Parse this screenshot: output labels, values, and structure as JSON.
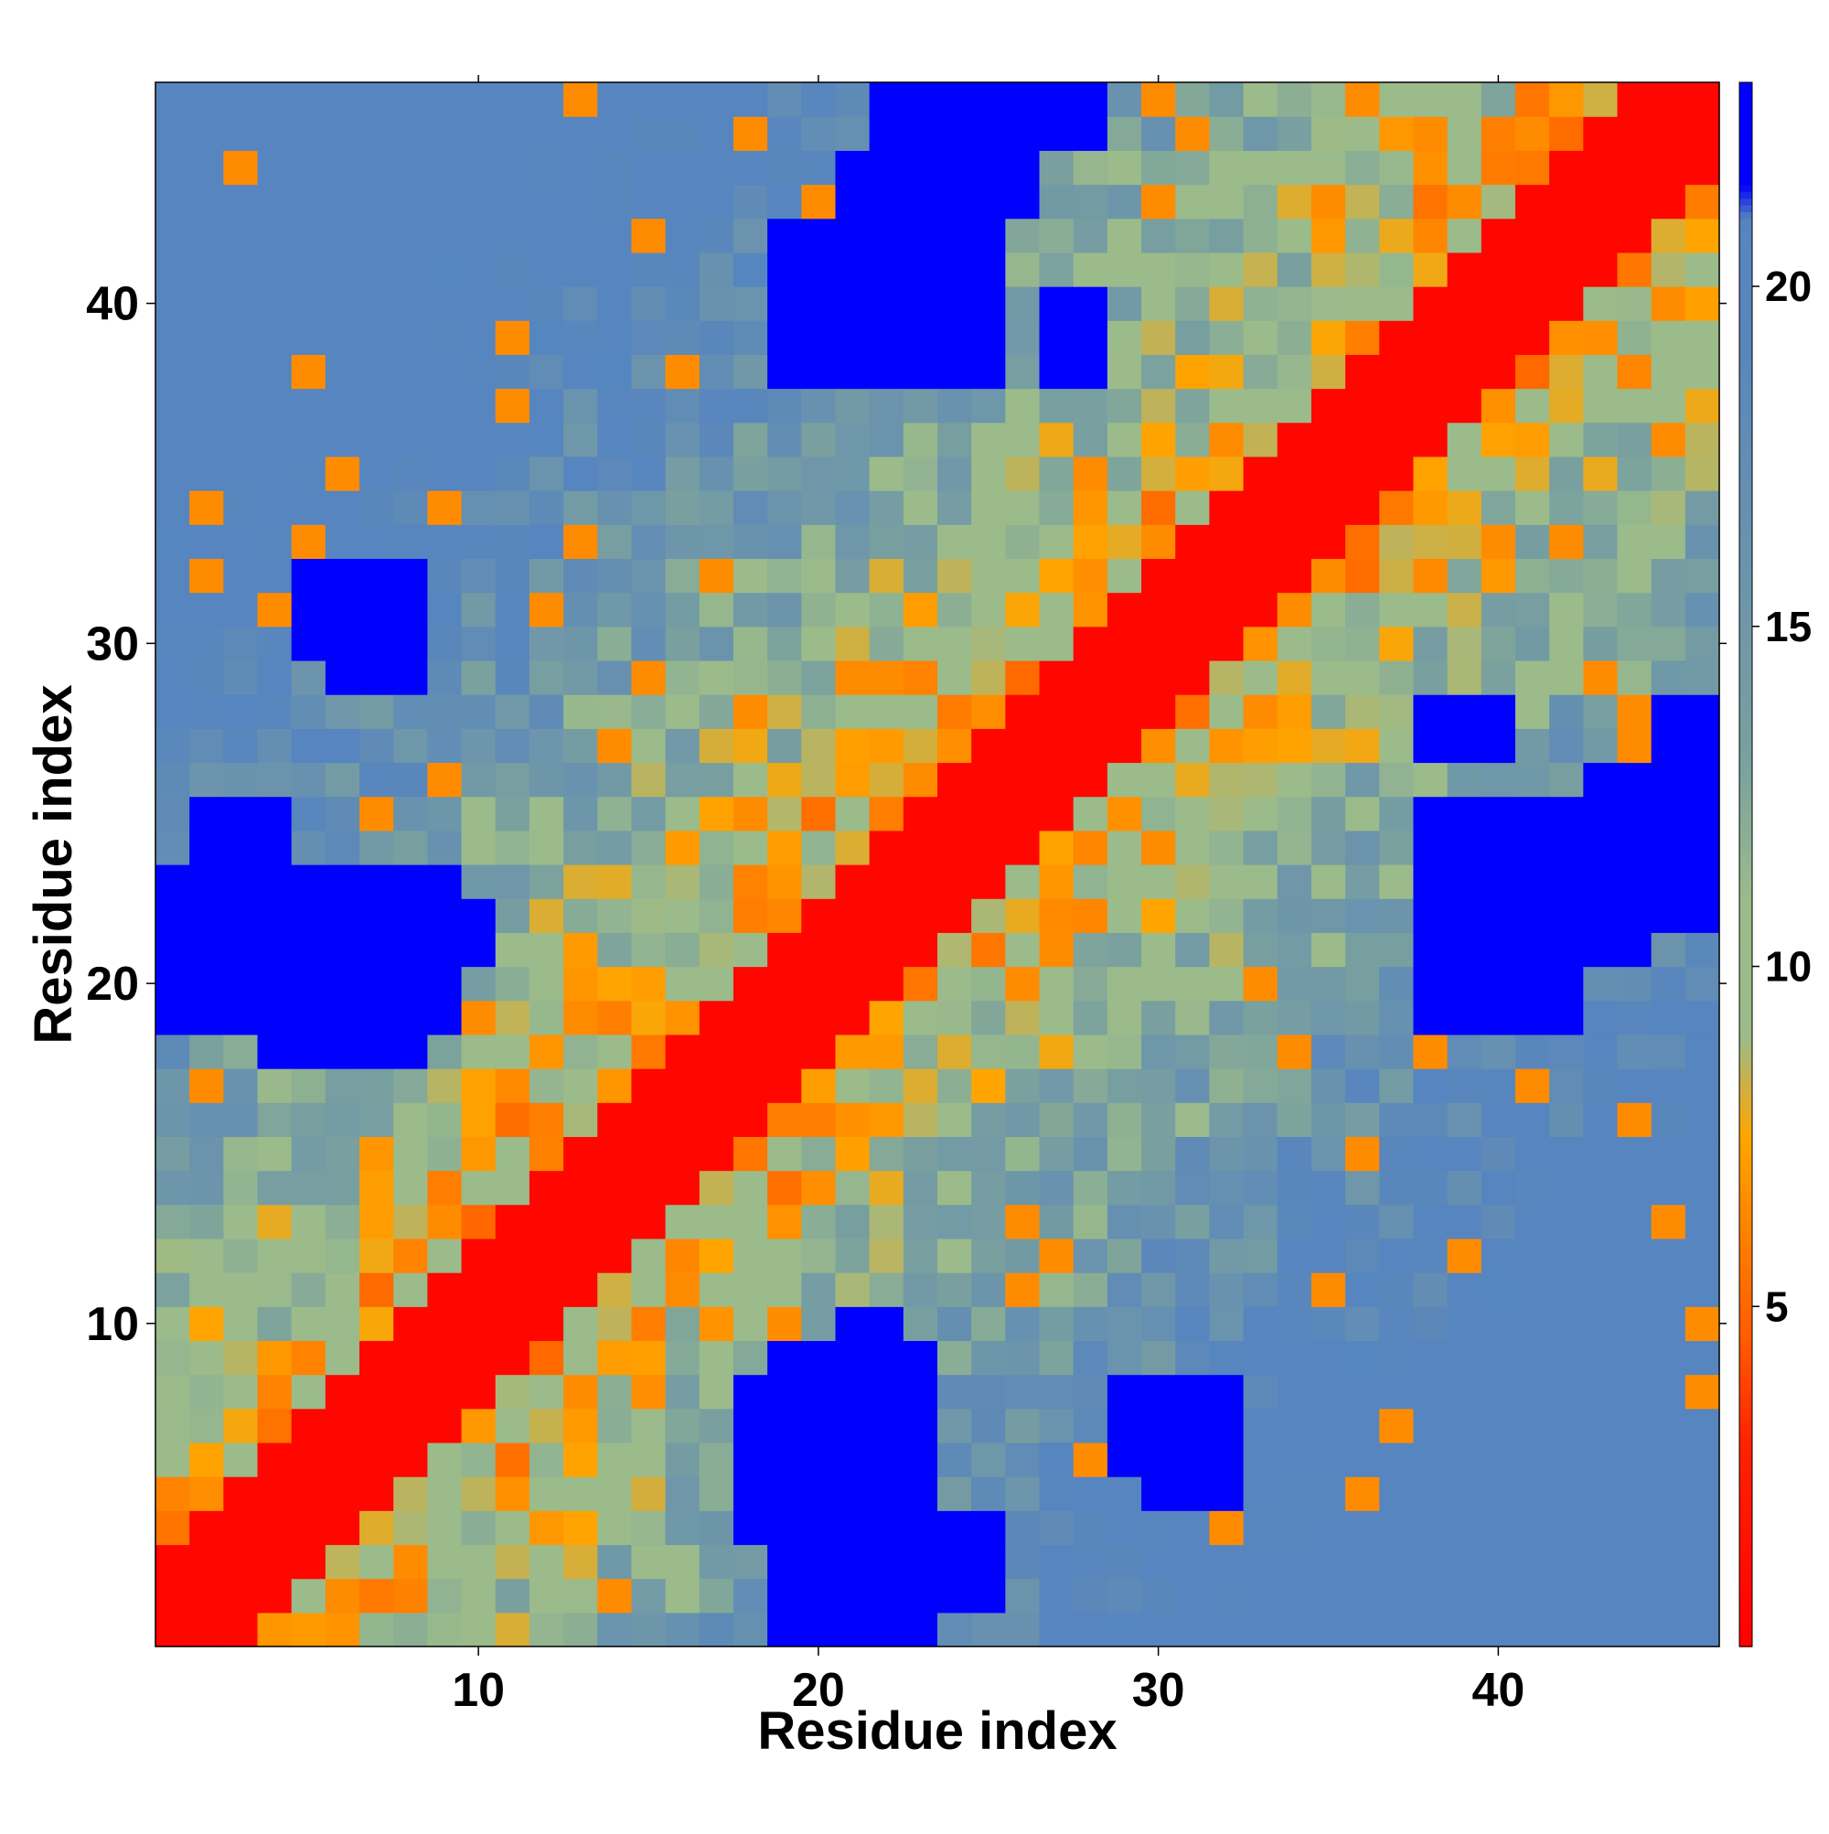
{
  "chart_data": {
    "type": "heatmap",
    "title": "",
    "xlabel": "Residue index",
    "ylabel": "Residue index",
    "x_range": [
      1,
      46
    ],
    "y_range": [
      1,
      46
    ],
    "x_ticks": [
      10,
      20,
      30,
      40
    ],
    "y_ticks": [
      10,
      20,
      30,
      40
    ],
    "colorbar": {
      "range": [
        0,
        23
      ],
      "ticks": [
        5,
        10,
        15,
        20
      ],
      "stops": [
        {
          "value": 0,
          "color": "#ff0000"
        },
        {
          "value": 3,
          "color": "#ff2200"
        },
        {
          "value": 4.5,
          "color": "#ff5a00"
        },
        {
          "value": 6,
          "color": "#ff7f00"
        },
        {
          "value": 7.5,
          "color": "#ffa500"
        },
        {
          "value": 9,
          "color": "#9bbb8b"
        },
        {
          "value": 11,
          "color": "#9bbb8b"
        },
        {
          "value": 13,
          "color": "#7aa19e"
        },
        {
          "value": 16,
          "color": "#6a93ad"
        },
        {
          "value": 19,
          "color": "#5a87bb"
        },
        {
          "value": 21,
          "color": "#5585c0"
        },
        {
          "value": 21.5,
          "color": "#0000ff"
        },
        {
          "value": 23,
          "color": "#0000ff"
        }
      ]
    },
    "diagonal_band_color": "#ff0000",
    "blue_blocks": [
      {
        "x": [
          19,
          22
        ],
        "y": [
          1,
          5
        ]
      },
      {
        "x": [
          21,
          22
        ],
        "y": [
          5,
          10
        ]
      },
      {
        "x": [
          18,
          19
        ],
        "y": [
          5,
          8
        ]
      },
      {
        "x": [
          1,
          9
        ],
        "y": [
          19,
          23
        ]
      },
      {
        "x": [
          4,
          7
        ],
        "y": [
          18,
          19
        ]
      },
      {
        "x": [
          38,
          42
        ],
        "y": [
          19,
          23
        ]
      },
      {
        "x": [
          43,
          46
        ],
        "y": [
          22,
          26
        ]
      },
      {
        "x": [
          38,
          42
        ],
        "y": [
          24,
          25
        ]
      },
      {
        "x": [
          19,
          21
        ],
        "y": [
          38,
          41
        ]
      },
      {
        "x": [
          21,
          22
        ],
        "y": [
          41,
          44
        ]
      },
      {
        "x": [
          23,
          28
        ],
        "y": [
          45,
          47
        ]
      },
      {
        "x": [
          6,
          8
        ],
        "y": [
          29,
          32
        ]
      },
      {
        "x": [
          30,
          32
        ],
        "y": [
          5,
          8
        ]
      },
      {
        "x": [
          38,
          40
        ],
        "y": [
          27,
          28
        ]
      },
      {
        "x": [
          2,
          4
        ],
        "y": [
          24,
          25
        ]
      }
    ],
    "seed": 7
  }
}
